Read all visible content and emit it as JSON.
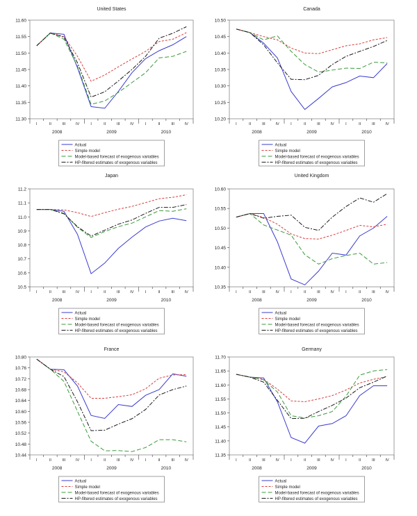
{
  "chart_data": [
    {
      "type": "line",
      "title": "United States",
      "ylim": [
        11.3,
        11.6
      ],
      "yticks": [
        "11.30",
        "11.35",
        "11.40",
        "11.45",
        "11.50",
        "11.55",
        "11.60"
      ],
      "quarters": [
        "I",
        "II",
        "III",
        "IV",
        "I",
        "II",
        "III",
        "IV",
        "I",
        "II",
        "III",
        "IV"
      ],
      "years": [
        "2008",
        "2009",
        "2010"
      ],
      "series": [
        {
          "name": "Actual",
          "values": [
            11.522,
            11.561,
            11.557,
            11.455,
            11.337,
            11.332,
            11.383,
            11.44,
            11.483,
            11.507,
            11.525,
            11.55
          ]
        },
        {
          "name": "Simple model",
          "values": [
            11.522,
            11.561,
            11.55,
            11.49,
            11.414,
            11.433,
            11.458,
            11.482,
            11.505,
            11.535,
            11.542,
            11.562
          ]
        },
        {
          "name": "Model-based forecast of exogenous variables",
          "values": [
            11.522,
            11.561,
            11.542,
            11.46,
            11.344,
            11.354,
            11.38,
            11.41,
            11.44,
            11.485,
            11.49,
            11.505
          ]
        },
        {
          "name": "HP-filtered estimates of exogenous variables",
          "values": [
            11.522,
            11.561,
            11.548,
            11.47,
            11.366,
            11.382,
            11.415,
            11.45,
            11.49,
            11.545,
            11.56,
            11.58
          ]
        }
      ]
    },
    {
      "type": "line",
      "title": "Canada",
      "ylim": [
        10.2,
        10.5
      ],
      "yticks": [
        "10.20",
        "10.25",
        "10.30",
        "10.35",
        "10.40",
        "10.45",
        "10.50"
      ],
      "quarters": [
        "I",
        "II",
        "III",
        "IV",
        "I",
        "II",
        "III",
        "IV",
        "I",
        "II",
        "III",
        "IV"
      ],
      "years": [
        "2008",
        "2009",
        "2010"
      ],
      "series": [
        {
          "name": "Actual",
          "values": [
            10.473,
            10.462,
            10.43,
            10.385,
            10.283,
            10.228,
            10.262,
            10.297,
            10.31,
            10.33,
            10.325,
            10.368
          ]
        },
        {
          "name": "Simple model",
          "values": [
            10.473,
            10.462,
            10.45,
            10.44,
            10.415,
            10.4,
            10.398,
            10.41,
            10.422,
            10.428,
            10.44,
            10.447
          ]
        },
        {
          "name": "Model-based forecast of exogenous variables",
          "values": [
            10.473,
            10.462,
            10.44,
            10.452,
            10.405,
            10.365,
            10.342,
            10.348,
            10.354,
            10.353,
            10.372,
            10.37
          ]
        },
        {
          "name": "HP-filtered estimates of exogenous variables",
          "values": [
            10.473,
            10.462,
            10.425,
            10.37,
            10.32,
            10.319,
            10.332,
            10.365,
            10.39,
            10.405,
            10.42,
            10.438
          ]
        }
      ]
    },
    {
      "type": "line",
      "title": "Japan",
      "ylim": [
        10.5,
        11.2
      ],
      "yticks": [
        "10.5",
        "10.6",
        "10.7",
        "10.8",
        "10.9",
        "11.0",
        "11.1",
        "11.2"
      ],
      "quarters": [
        "I",
        "II",
        "III",
        "IV",
        "I",
        "II",
        "III",
        "IV",
        "I",
        "II",
        "III",
        "IV"
      ],
      "years": [
        "2008",
        "2009",
        "2010"
      ],
      "series": [
        {
          "name": "Actual",
          "values": [
            11.053,
            11.053,
            11.04,
            10.875,
            10.594,
            10.67,
            10.775,
            10.855,
            10.928,
            10.97,
            10.99,
            10.973
          ]
        },
        {
          "name": "Simple model",
          "values": [
            11.053,
            11.053,
            11.05,
            11.03,
            11.003,
            11.03,
            11.055,
            11.075,
            11.102,
            11.13,
            11.14,
            11.158
          ]
        },
        {
          "name": "Model-based forecast of exogenous variables",
          "values": [
            11.053,
            11.053,
            11.025,
            10.925,
            10.853,
            10.895,
            10.93,
            10.955,
            11.0,
            11.045,
            11.04,
            11.058
          ]
        },
        {
          "name": "HP-filtered estimates of exogenous variables",
          "values": [
            11.053,
            11.053,
            11.022,
            10.93,
            10.863,
            10.905,
            10.948,
            10.978,
            11.025,
            11.068,
            11.068,
            11.088
          ]
        }
      ]
    },
    {
      "type": "line",
      "title": "United Kingdom",
      "ylim": [
        10.35,
        10.6
      ],
      "yticks": [
        "10.35",
        "10.40",
        "10.45",
        "10.50",
        "10.55",
        "10.60"
      ],
      "quarters": [
        "I",
        "II",
        "III",
        "IV",
        "I",
        "II",
        "III",
        "IV",
        "I",
        "II",
        "III",
        "IV"
      ],
      "years": [
        "2008",
        "2009",
        "2010"
      ],
      "series": [
        {
          "name": "Actual",
          "values": [
            10.528,
            10.537,
            10.537,
            10.465,
            10.37,
            10.355,
            10.39,
            10.436,
            10.431,
            10.48,
            10.5,
            10.53
          ]
        },
        {
          "name": "Simple model",
          "values": [
            10.528,
            10.537,
            10.527,
            10.51,
            10.485,
            10.473,
            10.472,
            10.482,
            10.494,
            10.507,
            10.503,
            10.51
          ]
        },
        {
          "name": "Model-based forecast of exogenous variables",
          "values": [
            10.528,
            10.537,
            10.508,
            10.495,
            10.482,
            10.432,
            10.408,
            10.422,
            10.43,
            10.436,
            10.408,
            10.412
          ]
        },
        {
          "name": "HP-filtered estimates of exogenous variables",
          "values": [
            10.528,
            10.537,
            10.525,
            10.53,
            10.533,
            10.502,
            10.494,
            10.528,
            10.555,
            10.577,
            10.566,
            10.588
          ]
        }
      ]
    },
    {
      "type": "line",
      "title": "France",
      "ylim": [
        10.44,
        10.8
      ],
      "yticks": [
        "10.44",
        "10.48",
        "10.52",
        "10.56",
        "10.60",
        "10.64",
        "10.68",
        "10.72",
        "10.76",
        "10.80"
      ],
      "quarters": [
        "I",
        "II",
        "III",
        "IV",
        "I",
        "II",
        "III",
        "IV",
        "I",
        "II",
        "III",
        "IV"
      ],
      "years": [
        "2008",
        "2009",
        "2010"
      ],
      "series": [
        {
          "name": "Actual",
          "values": [
            10.792,
            10.755,
            10.753,
            10.693,
            10.585,
            10.574,
            10.625,
            10.618,
            10.659,
            10.68,
            10.738,
            10.729
          ]
        },
        {
          "name": "Simple model",
          "values": [
            10.792,
            10.755,
            10.745,
            10.705,
            10.648,
            10.648,
            10.654,
            10.661,
            10.683,
            10.722,
            10.734,
            10.735
          ]
        },
        {
          "name": "Model-based forecast of exogenous variables",
          "values": [
            10.792,
            10.755,
            10.71,
            10.6,
            10.49,
            10.455,
            10.456,
            10.452,
            10.467,
            10.496,
            10.496,
            10.488
          ]
        },
        {
          "name": "HP-filtered estimates of exogenous variables",
          "values": [
            10.792,
            10.755,
            10.728,
            10.635,
            10.529,
            10.531,
            10.553,
            10.573,
            10.607,
            10.66,
            10.68,
            10.693
          ]
        }
      ]
    },
    {
      "type": "line",
      "title": "Germany",
      "ylim": [
        11.35,
        11.7
      ],
      "yticks": [
        "11.35",
        "11.40",
        "11.45",
        "11.50",
        "11.55",
        "11.60",
        "11.65",
        "11.70"
      ],
      "quarters": [
        "I",
        "II",
        "III",
        "IV",
        "I",
        "II",
        "III",
        "IV",
        "I",
        "II",
        "III",
        "IV"
      ],
      "years": [
        "2008",
        "2009",
        "2010"
      ],
      "series": [
        {
          "name": "Actual",
          "values": [
            11.638,
            11.628,
            11.625,
            11.54,
            11.412,
            11.392,
            11.453,
            11.462,
            11.49,
            11.562,
            11.597,
            11.597
          ]
        },
        {
          "name": "Simple model",
          "values": [
            11.638,
            11.628,
            11.62,
            11.585,
            11.543,
            11.54,
            11.55,
            11.562,
            11.582,
            11.607,
            11.62,
            11.63
          ]
        },
        {
          "name": "Model-based forecast of exogenous variables",
          "values": [
            11.638,
            11.628,
            11.618,
            11.575,
            11.49,
            11.482,
            11.49,
            11.505,
            11.56,
            11.635,
            11.65,
            11.655
          ]
        },
        {
          "name": "HP-filtered estimates of exogenous variables",
          "values": [
            11.638,
            11.628,
            11.61,
            11.545,
            11.48,
            11.481,
            11.505,
            11.527,
            11.553,
            11.59,
            11.61,
            11.632
          ]
        }
      ]
    }
  ],
  "legend": [
    "Actual",
    "Simple model",
    "Model-based forecast of exogenous variables",
    "HP-filtered estimates of exogenous variables"
  ],
  "series_colors": [
    "#3b3bd0",
    "#d83c3c",
    "#3a9a3a",
    "#1a1a1a"
  ],
  "grid": false,
  "legend_placement": "bottom"
}
